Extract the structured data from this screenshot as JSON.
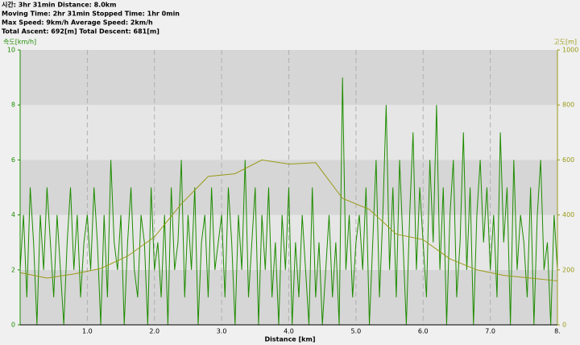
{
  "header": {
    "lines": [
      "시간: 3hr 31min  Distance: 8.0km",
      "Moving Time: 2hr 31min  Stopped Time: 1hr 0min",
      "Max Speed: 9km/h  Average Speed: 2km/h",
      "Total Ascent: 692[m]  Total Descent: 681[m]"
    ]
  },
  "chart_data": {
    "type": "line",
    "y_label": "속도[km/h]",
    "y2_label": "고도[m]",
    "x_label": "Distance [km]",
    "xlim": [
      0,
      8
    ],
    "ylim": [
      0,
      10
    ],
    "y2lim": [
      0,
      1000
    ],
    "xticks": [
      {
        "value": 1,
        "label": "1.0"
      },
      {
        "value": 2,
        "label": "2.0"
      },
      {
        "value": 3,
        "label": "3.0"
      },
      {
        "value": 4,
        "label": "4.0"
      },
      {
        "value": 5,
        "label": "5.0"
      },
      {
        "value": 6,
        "label": "6.0"
      },
      {
        "value": 7,
        "label": "7.0"
      },
      {
        "value": 8,
        "label": "8."
      }
    ],
    "yticks": [
      0,
      2,
      4,
      6,
      8,
      10
    ],
    "y2ticks": [
      0,
      200,
      400,
      600,
      800,
      1000
    ],
    "grid": true,
    "series": [
      {
        "color": "#1e8c00",
        "x": [
          0,
          0.05,
          0.1,
          0.15,
          0.2,
          0.25,
          0.3,
          0.35,
          0.4,
          0.45,
          0.5,
          0.55,
          0.6,
          0.65,
          0.7,
          0.75,
          0.8,
          0.85,
          0.9,
          0.95,
          1,
          1.05,
          1.1,
          1.15,
          1.2,
          1.25,
          1.3,
          1.35,
          1.4,
          1.45,
          1.5,
          1.55,
          1.6,
          1.65,
          1.7,
          1.75,
          1.8,
          1.85,
          1.9,
          1.95,
          2,
          2.05,
          2.1,
          2.15,
          2.2,
          2.25,
          2.3,
          2.35,
          2.4,
          2.45,
          2.5,
          2.55,
          2.6,
          2.65,
          2.7,
          2.75,
          2.8,
          2.85,
          2.9,
          2.95,
          3,
          3.05,
          3.1,
          3.15,
          3.2,
          3.25,
          3.3,
          3.35,
          3.4,
          3.45,
          3.5,
          3.55,
          3.6,
          3.65,
          3.7,
          3.75,
          3.8,
          3.85,
          3.9,
          3.95,
          4,
          4.05,
          4.1,
          4.15,
          4.2,
          4.25,
          4.3,
          4.35,
          4.4,
          4.45,
          4.5,
          4.55,
          4.6,
          4.65,
          4.7,
          4.75,
          4.8,
          4.85,
          4.9,
          4.95,
          5,
          5.05,
          5.1,
          5.15,
          5.2,
          5.25,
          5.3,
          5.35,
          5.4,
          5.45,
          5.5,
          5.55,
          5.6,
          5.65,
          5.7,
          5.75,
          5.8,
          5.85,
          5.9,
          5.95,
          6,
          6.05,
          6.1,
          6.15,
          6.2,
          6.25,
          6.3,
          6.35,
          6.4,
          6.45,
          6.5,
          6.55,
          6.6,
          6.65,
          6.7,
          6.75,
          6.8,
          6.85,
          6.9,
          6.95,
          7,
          7.05,
          7.1,
          7.15,
          7.2,
          7.25,
          7.3,
          7.35,
          7.4,
          7.45,
          7.5,
          7.55,
          7.6,
          7.65,
          7.7,
          7.75,
          7.8,
          7.85,
          7.9,
          7.95,
          8
        ],
        "values": [
          2,
          4,
          1,
          5,
          3,
          0,
          4,
          2,
          5,
          3,
          1,
          4,
          2,
          0,
          3,
          5,
          2,
          4,
          1,
          3,
          4,
          2,
          5,
          3,
          0,
          4,
          1,
          6,
          3,
          2,
          4,
          0,
          3,
          5,
          2,
          1,
          4,
          3,
          0,
          5,
          2,
          3,
          1,
          4,
          0,
          5,
          2,
          3,
          6,
          1,
          4,
          2,
          5,
          0,
          3,
          4,
          1,
          5,
          2,
          3,
          4,
          1,
          5,
          3,
          0,
          4,
          2,
          6,
          1,
          3,
          5,
          0,
          4,
          2,
          5,
          1,
          3,
          0,
          4,
          2,
          5,
          0,
          3,
          1,
          4,
          2,
          0,
          5,
          1,
          3,
          0,
          2,
          4,
          1,
          3,
          0,
          9,
          2,
          4,
          1,
          3,
          4,
          2,
          5,
          0,
          3,
          6,
          1,
          4,
          8,
          2,
          5,
          1,
          6,
          3,
          0,
          4,
          7,
          2,
          5,
          3,
          1,
          6,
          3,
          8,
          2,
          5,
          0,
          4,
          6,
          1,
          3,
          7,
          2,
          5,
          0,
          4,
          6,
          3,
          5,
          2,
          4,
          1,
          7,
          3,
          5,
          0,
          6,
          2,
          4,
          3,
          1,
          5,
          0,
          4,
          6,
          2,
          3,
          0,
          4,
          2
        ]
      },
      {
        "color": "#9a9a1a",
        "axis": "y2",
        "x": [
          0,
          0.4,
          0.8,
          1.2,
          1.6,
          2,
          2.4,
          2.8,
          3.2,
          3.6,
          4,
          4.4,
          4.8,
          5.2,
          5.6,
          6,
          6.4,
          6.8,
          7.2,
          7.6,
          8
        ],
        "values": [
          190,
          170,
          185,
          205,
          250,
          320,
          440,
          540,
          550,
          600,
          585,
          590,
          460,
          420,
          330,
          310,
          240,
          200,
          180,
          170,
          160
        ]
      }
    ]
  }
}
